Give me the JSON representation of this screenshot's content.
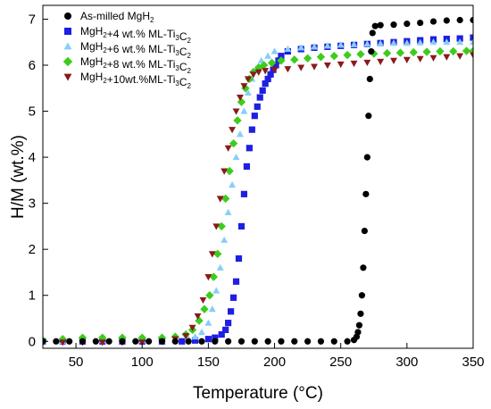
{
  "chart_data": {
    "type": "scatter",
    "xlabel": "Temperature (°C)",
    "ylabel": "H/M (wt.%)",
    "xlim": [
      25,
      350
    ],
    "ylim": [
      -0.15,
      7.3
    ],
    "xticks": [
      50,
      100,
      150,
      200,
      250,
      300,
      350
    ],
    "yticks": [
      0,
      1,
      2,
      3,
      4,
      5,
      6,
      7
    ],
    "legend_position": "top-left",
    "series": [
      {
        "name": "As-milled MgH2",
        "legend_parts": [
          [
            "As-milled MgH",
            false
          ],
          [
            "2",
            true
          ]
        ],
        "marker": "circle",
        "color": "#000000",
        "x": [
          25,
          35,
          45,
          55,
          65,
          75,
          85,
          95,
          105,
          115,
          125,
          135,
          145,
          155,
          165,
          175,
          185,
          195,
          205,
          215,
          225,
          235,
          245,
          255,
          260,
          262,
          263,
          264,
          265,
          266,
          267,
          268,
          269,
          270,
          271,
          272,
          273,
          274,
          276,
          280,
          290,
          300,
          310,
          320,
          330,
          340,
          350
        ],
        "y": [
          0,
          0,
          0,
          0,
          0,
          0,
          0,
          0,
          0,
          0,
          0,
          0,
          0,
          0,
          0,
          0,
          0,
          0,
          0,
          0,
          0,
          0,
          0,
          0,
          0.03,
          0.1,
          0.2,
          0.35,
          0.6,
          1.0,
          1.6,
          2.4,
          3.2,
          4.0,
          4.9,
          5.7,
          6.3,
          6.7,
          6.85,
          6.87,
          6.88,
          6.9,
          6.92,
          6.95,
          6.97,
          6.98,
          6.98
        ]
      },
      {
        "name": "MgH2+4 wt.% ML-Ti3C2",
        "legend_parts": [
          [
            "MgH",
            false
          ],
          [
            "2",
            true
          ],
          [
            "+4 wt.% ML-Ti",
            false
          ],
          [
            "3",
            true
          ],
          [
            "C",
            false
          ],
          [
            "2",
            true
          ]
        ],
        "marker": "square",
        "color": "#1f1fe0",
        "x": [
          25,
          40,
          55,
          70,
          85,
          100,
          115,
          130,
          140,
          150,
          155,
          160,
          163,
          165,
          167,
          169,
          171,
          173,
          175,
          177,
          179,
          181,
          183,
          185,
          187,
          189,
          191,
          193,
          195,
          197,
          199,
          201,
          203,
          205,
          210,
          220,
          230,
          240,
          250,
          260,
          270,
          280,
          290,
          300,
          310,
          320,
          330,
          340,
          350
        ],
        "y": [
          0,
          0,
          0,
          0,
          0,
          0,
          0,
          0,
          0.02,
          0.05,
          0.08,
          0.15,
          0.25,
          0.4,
          0.65,
          0.95,
          1.3,
          1.8,
          2.5,
          3.2,
          3.8,
          4.2,
          4.6,
          4.9,
          5.1,
          5.3,
          5.45,
          5.6,
          5.7,
          5.8,
          5.9,
          6.0,
          6.1,
          6.2,
          6.3,
          6.35,
          6.38,
          6.4,
          6.42,
          6.44,
          6.46,
          6.48,
          6.5,
          6.52,
          6.54,
          6.56,
          6.57,
          6.58,
          6.6
        ]
      },
      {
        "name": "MgH2+6 wt.% ML-Ti3C2",
        "legend_parts": [
          [
            "MgH",
            false
          ],
          [
            "2",
            true
          ],
          [
            "+6 wt.% ML-Ti",
            false
          ],
          [
            "3",
            true
          ],
          [
            "C",
            false
          ],
          [
            "2",
            true
          ]
        ],
        "marker": "triangle",
        "color": "#87cefa",
        "x": [
          25,
          40,
          55,
          70,
          85,
          100,
          115,
          125,
          135,
          140,
          145,
          150,
          153,
          156,
          159,
          162,
          165,
          168,
          171,
          174,
          177,
          180,
          183,
          186,
          190,
          195,
          200,
          210,
          220,
          230,
          240,
          250,
          260,
          270,
          280,
          290,
          300,
          310,
          320,
          330,
          340,
          350
        ],
        "y": [
          0,
          0,
          0.02,
          0.02,
          0.02,
          0.02,
          0.02,
          0.03,
          0.05,
          0.1,
          0.2,
          0.4,
          0.7,
          1.1,
          1.6,
          2.2,
          2.8,
          3.4,
          4.0,
          4.5,
          5.0,
          5.4,
          5.7,
          5.9,
          6.1,
          6.2,
          6.3,
          6.35,
          6.38,
          6.4,
          6.42,
          6.44,
          6.45,
          6.46,
          6.47,
          6.48,
          6.48,
          6.49,
          6.5,
          6.5,
          6.5,
          6.5
        ]
      },
      {
        "name": "MgH2+8 wt.% ML-Ti3C2",
        "legend_parts": [
          [
            "MgH",
            false
          ],
          [
            "2",
            true
          ],
          [
            "+8 wt.% ML-Ti",
            false
          ],
          [
            "3",
            true
          ],
          [
            "C",
            false
          ],
          [
            "2",
            true
          ]
        ],
        "marker": "diamond",
        "color": "#3ccc1c",
        "x": [
          25,
          40,
          55,
          70,
          85,
          100,
          115,
          125,
          133,
          138,
          143,
          147,
          151,
          154,
          157,
          160,
          163,
          166,
          169,
          172,
          175,
          178,
          181,
          184,
          188,
          192,
          198,
          205,
          215,
          225,
          235,
          245,
          255,
          265,
          275,
          285,
          295,
          305,
          315,
          325,
          335,
          345,
          350
        ],
        "y": [
          0.02,
          0.05,
          0.08,
          0.08,
          0.08,
          0.08,
          0.08,
          0.1,
          0.15,
          0.25,
          0.45,
          0.7,
          1.0,
          1.4,
          1.9,
          2.5,
          3.1,
          3.7,
          4.3,
          4.8,
          5.2,
          5.5,
          5.7,
          5.85,
          5.95,
          6.0,
          6.05,
          6.1,
          6.12,
          6.15,
          6.18,
          6.2,
          6.22,
          6.24,
          6.25,
          6.26,
          6.27,
          6.28,
          6.29,
          6.3,
          6.3,
          6.31,
          6.31
        ]
      },
      {
        "name": "MgH2+10wt.%ML-Ti3C2",
        "legend_parts": [
          [
            "MgH",
            false
          ],
          [
            "2",
            true
          ],
          [
            "+10wt.%ML-Ti",
            false
          ],
          [
            "3",
            true
          ],
          [
            "C",
            false
          ],
          [
            "2",
            true
          ]
        ],
        "marker": "triangle-down",
        "color": "#8b1a1a",
        "x": [
          25,
          40,
          55,
          70,
          85,
          100,
          115,
          125,
          133,
          138,
          142,
          146,
          150,
          153,
          156,
          159,
          162,
          165,
          168,
          171,
          174,
          177,
          180,
          184,
          188,
          193,
          200,
          210,
          220,
          230,
          240,
          250,
          260,
          270,
          280,
          290,
          300,
          310,
          320,
          330,
          340,
          350
        ],
        "y": [
          -0.02,
          -0.02,
          -0.02,
          -0.02,
          -0.02,
          -0.02,
          0,
          0.05,
          0.12,
          0.3,
          0.55,
          0.9,
          1.4,
          1.9,
          2.5,
          3.1,
          3.7,
          4.2,
          4.6,
          5.0,
          5.3,
          5.55,
          5.7,
          5.8,
          5.85,
          5.88,
          5.9,
          5.92,
          5.95,
          5.97,
          6.0,
          6.02,
          6.04,
          6.06,
          6.08,
          6.1,
          6.12,
          6.14,
          6.16,
          6.18,
          6.2,
          6.22
        ]
      }
    ]
  }
}
